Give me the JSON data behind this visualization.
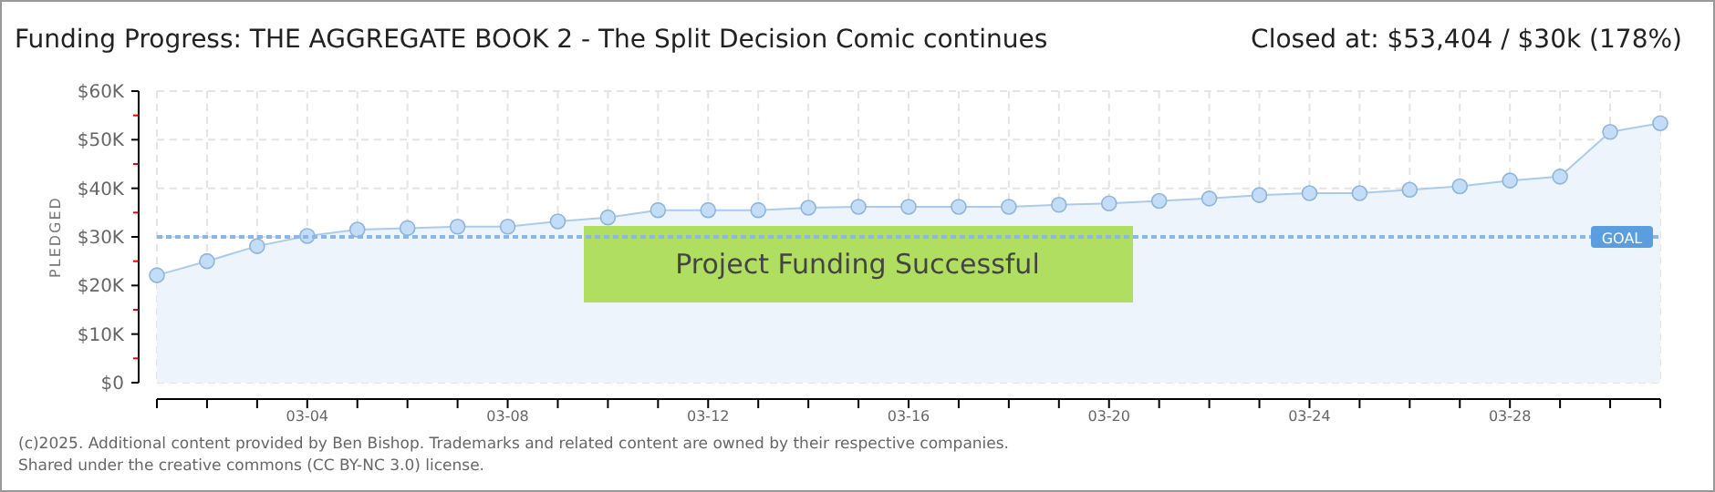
{
  "chart_data": {
    "type": "area",
    "title": "Funding Progress: THE AGGREGATE BOOK 2 - The Split Decision Comic continues",
    "subtitle": "Closed at:  $53,404 /  $30k (178%)",
    "ylabel": "PLEDGED",
    "x": [
      "--03-01",
      "--03-02",
      "--03-03",
      "--03-04",
      "--03-05",
      "--03-06",
      "--03-07",
      "--03-08",
      "--03-09",
      "--03-10",
      "--03-11",
      "--03-12",
      "--03-13",
      "--03-14",
      "--03-15",
      "--03-16",
      "--03-17",
      "--03-18",
      "--03-19",
      "--03-20",
      "--03-21",
      "--03-22",
      "--03-23",
      "--03-24",
      "--03-25",
      "--03-26",
      "--03-27",
      "--03-28",
      "--03-29",
      "--03-30",
      "--03-31"
    ],
    "series": [
      {
        "color": "#a9cbee",
        "values": [
          22100,
          25000,
          28100,
          30200,
          31500,
          31800,
          32100,
          32100,
          33200,
          34000,
          35500,
          35500,
          35500,
          36000,
          36200,
          36200,
          36200,
          36200,
          36600,
          36900,
          37400,
          37900,
          38600,
          39000,
          39000,
          39700,
          40400,
          41600,
          42400,
          51600,
          53400
        ]
      }
    ],
    "xlim": [
      "--03-01",
      "--03-31"
    ],
    "xticks": [
      {
        "value": "--03-01",
        "label": null
      },
      {
        "value": "--03-02",
        "label": null
      },
      {
        "value": "--03-03",
        "label": null
      },
      {
        "value": "--03-04",
        "label": "03-04"
      },
      {
        "value": "--03-05",
        "label": null
      },
      {
        "value": "--03-06",
        "label": null
      },
      {
        "value": "--03-07",
        "label": null
      },
      {
        "value": "--03-08",
        "label": "03-08"
      },
      {
        "value": "--03-09",
        "label": null
      },
      {
        "value": "--03-10",
        "label": null
      },
      {
        "value": "--03-11",
        "label": null
      },
      {
        "value": "--03-12",
        "label": "03-12"
      },
      {
        "value": "--03-13",
        "label": null
      },
      {
        "value": "--03-14",
        "label": null
      },
      {
        "value": "--03-15",
        "label": null
      },
      {
        "value": "--03-16",
        "label": "03-16"
      },
      {
        "value": "--03-17",
        "label": null
      },
      {
        "value": "--03-18",
        "label": null
      },
      {
        "value": "--03-19",
        "label": null
      },
      {
        "value": "--03-20",
        "label": "03-20"
      },
      {
        "value": "--03-21",
        "label": null
      },
      {
        "value": "--03-22",
        "label": null
      },
      {
        "value": "--03-23",
        "label": null
      },
      {
        "value": "--03-24",
        "label": "03-24"
      },
      {
        "value": "--03-25",
        "label": null
      },
      {
        "value": "--03-26",
        "label": null
      },
      {
        "value": "--03-27",
        "label": null
      },
      {
        "value": "--03-28",
        "label": "03-28"
      },
      {
        "value": "--03-29",
        "label": null
      },
      {
        "value": "--03-30",
        "label": null
      },
      {
        "value": "--03-31",
        "label": null
      }
    ],
    "ylim": [
      0,
      60000
    ],
    "yticks": [
      {
        "value": 0,
        "label": "$0"
      },
      {
        "value": 5000,
        "label": null
      },
      {
        "value": 10000,
        "label": "$10K"
      },
      {
        "value": 15000,
        "label": null
      },
      {
        "value": 20000,
        "label": "$20K"
      },
      {
        "value": 25000,
        "label": null
      },
      {
        "value": 30000,
        "label": "$30K"
      },
      {
        "value": 35000,
        "label": null
      },
      {
        "value": 40000,
        "label": "$40K"
      },
      {
        "value": 45000,
        "label": null
      },
      {
        "value": 50000,
        "label": "$50K"
      },
      {
        "value": 55000,
        "label": null
      },
      {
        "value": 60000,
        "label": "$60K"
      }
    ],
    "grid": true,
    "marker": "circle",
    "ref_lines": [
      {
        "axis": "y",
        "value": 30000,
        "label": "GOAL",
        "color": "#8ab6e8",
        "line_style": "dotted"
      }
    ],
    "annotations": [
      "Project Funding Successful",
      "(c)2025. Additional content provided by Ben Bishop. Trademarks and related content are owned by their respective companies.",
      "Shared under the creative commons (CC BY-NC 3.0) license."
    ]
  }
}
